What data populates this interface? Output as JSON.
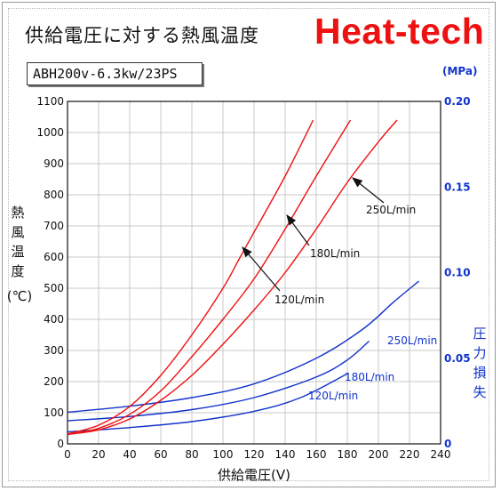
{
  "title": "供給電圧に対する熱風温度",
  "brand": "Heat-tech",
  "model": "ABH200v-6.3kw/23PS",
  "chart_data": {
    "type": "line",
    "x_axis": {
      "label": "供給電圧(V)",
      "range": [
        0,
        240
      ],
      "ticks": [
        0,
        20,
        40,
        60,
        80,
        100,
        120,
        140,
        160,
        180,
        200,
        220,
        240
      ]
    },
    "y_left": {
      "label": [
        "熱",
        "風",
        "温",
        "度"
      ],
      "unit": "(℃)",
      "range": [
        0,
        1100
      ],
      "ticks": [
        0,
        100,
        200,
        300,
        400,
        500,
        600,
        700,
        800,
        900,
        1000,
        1100
      ],
      "color": "#111111"
    },
    "y_right": {
      "label": [
        "圧",
        "力",
        "損",
        "失"
      ],
      "unit": "(MPa)",
      "range": [
        0,
        0.2
      ],
      "ticks": [
        "0",
        "0.05",
        "0.10",
        "0.15",
        "0.20"
      ],
      "tick_values": [
        0,
        0.05,
        0.1,
        0.15,
        0.2
      ],
      "color": "#1133cc"
    },
    "grid": true,
    "temperature_series": [
      {
        "name": "120L/min",
        "color": "#ee1111",
        "points": [
          [
            0,
            32
          ],
          [
            20,
            60
          ],
          [
            40,
            120
          ],
          [
            60,
            220
          ],
          [
            80,
            350
          ],
          [
            100,
            500
          ],
          [
            110,
            590
          ],
          [
            120,
            680
          ],
          [
            140,
            860
          ],
          [
            158,
            1040
          ]
        ]
      },
      {
        "name": "180L/min",
        "color": "#ee1111",
        "points": [
          [
            0,
            30
          ],
          [
            20,
            50
          ],
          [
            40,
            95
          ],
          [
            60,
            170
          ],
          [
            80,
            280
          ],
          [
            100,
            400
          ],
          [
            120,
            530
          ],
          [
            140,
            690
          ],
          [
            160,
            860
          ],
          [
            182,
            1040
          ]
        ]
      },
      {
        "name": "250L/min",
        "color": "#ee1111",
        "points": [
          [
            0,
            30
          ],
          [
            20,
            45
          ],
          [
            40,
            80
          ],
          [
            60,
            140
          ],
          [
            80,
            220
          ],
          [
            100,
            320
          ],
          [
            120,
            430
          ],
          [
            140,
            550
          ],
          [
            160,
            690
          ],
          [
            180,
            840
          ],
          [
            200,
            970
          ],
          [
            212,
            1040
          ]
        ]
      }
    ],
    "pressure_series": [
      {
        "name": "120L/min",
        "color": "#1133cc",
        "points": [
          [
            0,
            0.007
          ],
          [
            40,
            0.0095
          ],
          [
            80,
            0.013
          ],
          [
            120,
            0.019
          ],
          [
            150,
            0.027
          ],
          [
            180,
            0.041
          ]
        ]
      },
      {
        "name": "180L/min",
        "color": "#1133cc",
        "points": [
          [
            0,
            0.0135
          ],
          [
            40,
            0.016
          ],
          [
            80,
            0.02
          ],
          [
            120,
            0.027
          ],
          [
            160,
            0.039
          ],
          [
            180,
            0.049
          ],
          [
            194,
            0.06
          ]
        ]
      },
      {
        "name": "250L/min",
        "color": "#1133cc",
        "points": [
          [
            0,
            0.0185
          ],
          [
            40,
            0.022
          ],
          [
            80,
            0.027
          ],
          [
            120,
            0.035
          ],
          [
            160,
            0.05
          ],
          [
            190,
            0.067
          ],
          [
            210,
            0.083
          ],
          [
            226,
            0.095
          ]
        ]
      }
    ],
    "annotations": [
      {
        "text": "250L/min",
        "series": "temperature"
      },
      {
        "text": "180L/min",
        "series": "temperature"
      },
      {
        "text": "120L/min",
        "series": "temperature"
      },
      {
        "text": "250L/min",
        "series": "pressure"
      },
      {
        "text": "180L/min",
        "series": "pressure"
      },
      {
        "text": "120L/min",
        "series": "pressure"
      }
    ]
  }
}
